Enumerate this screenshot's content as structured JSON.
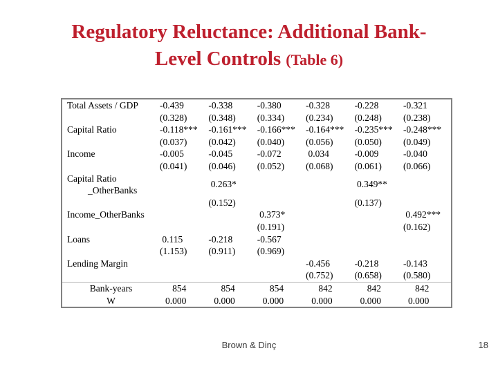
{
  "title": {
    "line1": "Regulatory Reluctance: Additional Bank-",
    "line2_main": "Level Controls",
    "line2_small": "(Table 6)"
  },
  "theme": {
    "title_color": "#be202e",
    "table_border_color": "#828282",
    "separator_color": "#b3b3b3"
  },
  "table": {
    "rows": [
      {
        "type": "coef",
        "label": "Total Assets / GDP",
        "cells": [
          "-0.439",
          "-0.338",
          "-0.380",
          "-0.328",
          "-0.228",
          "-0.321"
        ]
      },
      {
        "type": "se",
        "label": "",
        "cells": [
          "(0.328)",
          "(0.348)",
          "(0.334)",
          "(0.234)",
          "(0.248)",
          "(0.238)"
        ]
      },
      {
        "type": "coef",
        "label": "Capital Ratio",
        "cells": [
          "-0.118***",
          "-0.161***",
          "-0.166***",
          "-0.164***",
          "-0.235***",
          "-0.248***"
        ]
      },
      {
        "type": "se",
        "label": "",
        "cells": [
          "(0.037)",
          "(0.042)",
          "(0.040)",
          "(0.056)",
          "(0.050)",
          "(0.049)"
        ]
      },
      {
        "type": "coef",
        "label": "Income",
        "cells": [
          "-0.005",
          "-0.045",
          "-0.072",
          " 0.034",
          "-0.009",
          "-0.040"
        ]
      },
      {
        "type": "se",
        "label": "",
        "cells": [
          "(0.041)",
          "(0.046)",
          "(0.052)",
          "(0.068)",
          "(0.061)",
          "(0.066)"
        ]
      },
      {
        "type": "coef2",
        "label": "Capital Ratio",
        "label2": "_OtherBanks",
        "cells": [
          "",
          " 0.263*",
          "",
          "",
          " 0.349**",
          ""
        ]
      },
      {
        "type": "se",
        "label": "",
        "cells": [
          "",
          "(0.152)",
          "",
          "",
          "(0.137)",
          ""
        ]
      },
      {
        "type": "coef",
        "label": "Income_OtherBanks",
        "cells": [
          "",
          "",
          " 0.373*",
          "",
          "",
          " 0.492***"
        ]
      },
      {
        "type": "se",
        "label": "",
        "cells": [
          "",
          "",
          "(0.191)",
          "",
          "",
          "(0.162)"
        ]
      },
      {
        "type": "coef",
        "label": "Loans",
        "cells": [
          " 0.115",
          "-0.218",
          "-0.567",
          "",
          "",
          ""
        ]
      },
      {
        "type": "se",
        "label": "",
        "cells": [
          "(1.153)",
          "(0.911)",
          "(0.969)",
          "",
          "",
          ""
        ]
      },
      {
        "type": "coef",
        "label": "Lending Margin",
        "cells": [
          "",
          "",
          "",
          "-0.456",
          "-0.218",
          "-0.143"
        ]
      },
      {
        "type": "se",
        "label": "",
        "cells": [
          "",
          "",
          "",
          "(0.752)",
          "(0.658)",
          "(0.580)"
        ]
      },
      {
        "type": "stats",
        "label": "Bank-years",
        "cells": [
          "854",
          "854",
          "854",
          "842",
          "842",
          "842"
        ]
      },
      {
        "type": "stats",
        "label": "W",
        "cells": [
          "0.000",
          "0.000",
          "0.000",
          "0.000",
          "0.000",
          "0.000"
        ]
      }
    ]
  },
  "footer": {
    "authors": "Brown & Dinç",
    "page_number": "18"
  }
}
